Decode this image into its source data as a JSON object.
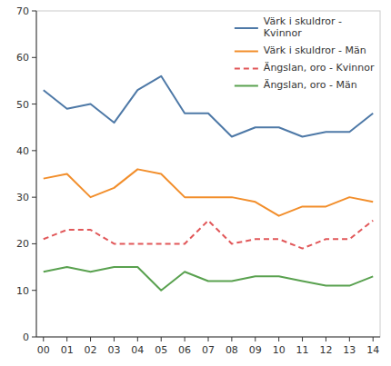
{
  "chart_data": {
    "type": "line",
    "x": [
      0,
      1,
      2,
      3,
      4,
      5,
      6,
      7,
      8,
      9,
      10,
      11,
      12,
      13,
      14
    ],
    "xlim": [
      -0.3,
      14.3
    ],
    "xticks": [
      {
        "value": 0,
        "label": "00"
      },
      {
        "value": 1,
        "label": "01"
      },
      {
        "value": 2,
        "label": "02"
      },
      {
        "value": 3,
        "label": "03"
      },
      {
        "value": 4,
        "label": "04"
      },
      {
        "value": 5,
        "label": "05"
      },
      {
        "value": 6,
        "label": "06"
      },
      {
        "value": 7,
        "label": "07"
      },
      {
        "value": 8,
        "label": "08"
      },
      {
        "value": 9,
        "label": "09"
      },
      {
        "value": 10,
        "label": "10"
      },
      {
        "value": 11,
        "label": "11"
      },
      {
        "value": 12,
        "label": "12"
      },
      {
        "value": 13,
        "label": "13"
      },
      {
        "value": 14,
        "label": "14"
      }
    ],
    "ylim": [
      0,
      70
    ],
    "yticks": [
      0,
      10,
      20,
      30,
      40,
      50,
      60,
      70
    ],
    "grid": false,
    "legend": "upper right",
    "series": [
      {
        "name": "Värk i skuldror -\nKvinnor",
        "color": "#4e79a7",
        "line_style": "solid",
        "values": [
          53,
          49,
          50,
          46,
          53,
          56,
          48,
          48,
          43,
          45,
          45,
          43,
          44,
          44,
          48
        ]
      },
      {
        "name": "Värk i skuldror - Män",
        "color": "#f28e2b",
        "line_style": "solid",
        "values": [
          34,
          35,
          30,
          32,
          36,
          35,
          30,
          30,
          30,
          29,
          26,
          28,
          28,
          30,
          29
        ]
      },
      {
        "name": "Ängslan, oro - Kvinnor",
        "color": "#e15759",
        "line_style": "dashed",
        "values": [
          21,
          23,
          23,
          20,
          20,
          20,
          20,
          25,
          20,
          21,
          21,
          19,
          21,
          21,
          25
        ]
      },
      {
        "name": "Ängslan, oro - Män",
        "color": "#59a14f",
        "line_style": "solid",
        "values": [
          14,
          15,
          14,
          15,
          15,
          10,
          14,
          12,
          12,
          13,
          13,
          12,
          11,
          11,
          13
        ]
      }
    ]
  }
}
